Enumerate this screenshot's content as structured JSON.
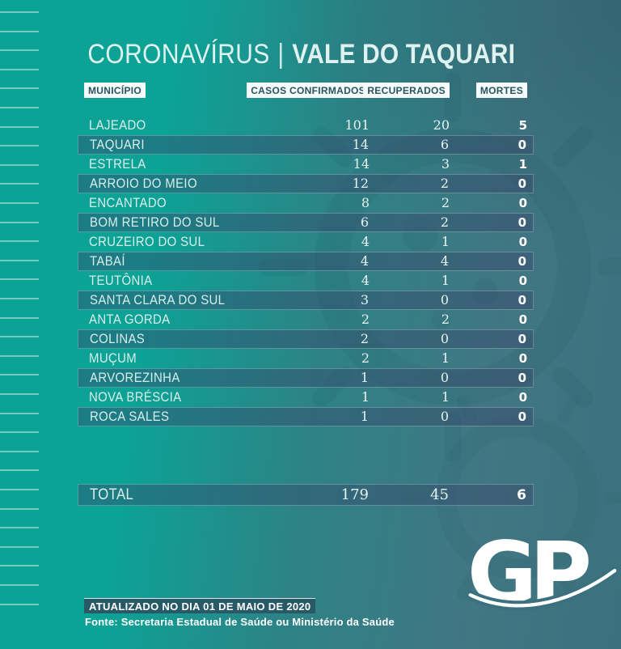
{
  "title": {
    "left": "CORONAVÍRUS",
    "sep": "|",
    "right": "VALE DO TAQUARI"
  },
  "chart_data": {
    "type": "table",
    "title": "CORONAVÍRUS | VALE DO TAQUARI",
    "columns": [
      "MUNICÍPIO",
      "CASOS CONFIRMADOS",
      "RECUPERADOS",
      "MORTES"
    ],
    "rows": [
      [
        "LAJEADO",
        101,
        20,
        5
      ],
      [
        "TAQUARI",
        14,
        6,
        0
      ],
      [
        "ESTRELA",
        14,
        3,
        1
      ],
      [
        "ARROIO DO MEIO",
        12,
        2,
        0
      ],
      [
        "ENCANTADO",
        8,
        2,
        0
      ],
      [
        "BOM RETIRO DO SUL",
        6,
        2,
        0
      ],
      [
        "CRUZEIRO DO SUL",
        4,
        1,
        0
      ],
      [
        "TABAÍ",
        4,
        4,
        0
      ],
      [
        "TEUTÔNIA",
        4,
        1,
        0
      ],
      [
        "SANTA CLARA DO SUL",
        3,
        0,
        0
      ],
      [
        "ANTA GORDA",
        2,
        2,
        0
      ],
      [
        "COLINAS",
        2,
        0,
        0
      ],
      [
        "MUÇUM",
        2,
        1,
        0
      ],
      [
        "ARVOREZINHA",
        1,
        0,
        0
      ],
      [
        "NOVA BRÉSCIA",
        1,
        1,
        0
      ],
      [
        "ROCA SALES",
        1,
        0,
        0
      ]
    ],
    "total": [
      "TOTAL",
      179,
      45,
      6
    ],
    "legend_position": "none",
    "grid": false
  },
  "footer": {
    "updated": "ATUALIZADO NO DIA 01 DE MAIO DE 2020",
    "source": "Fonte: Secretaria Estadual de Saúde ou Ministério da Saúde"
  },
  "logo": {
    "text": "GP"
  },
  "colors": {
    "bg_left": "#0ca296",
    "bg_right": "#3b717e",
    "band": "rgba(55,70,105,0.42)",
    "header_box_bg": "#f6fcfb",
    "header_box_text": "#27545e",
    "title_text": "#dff2ef",
    "deaths_text": "#ffffff",
    "footer_box_bg": "#275a66"
  }
}
